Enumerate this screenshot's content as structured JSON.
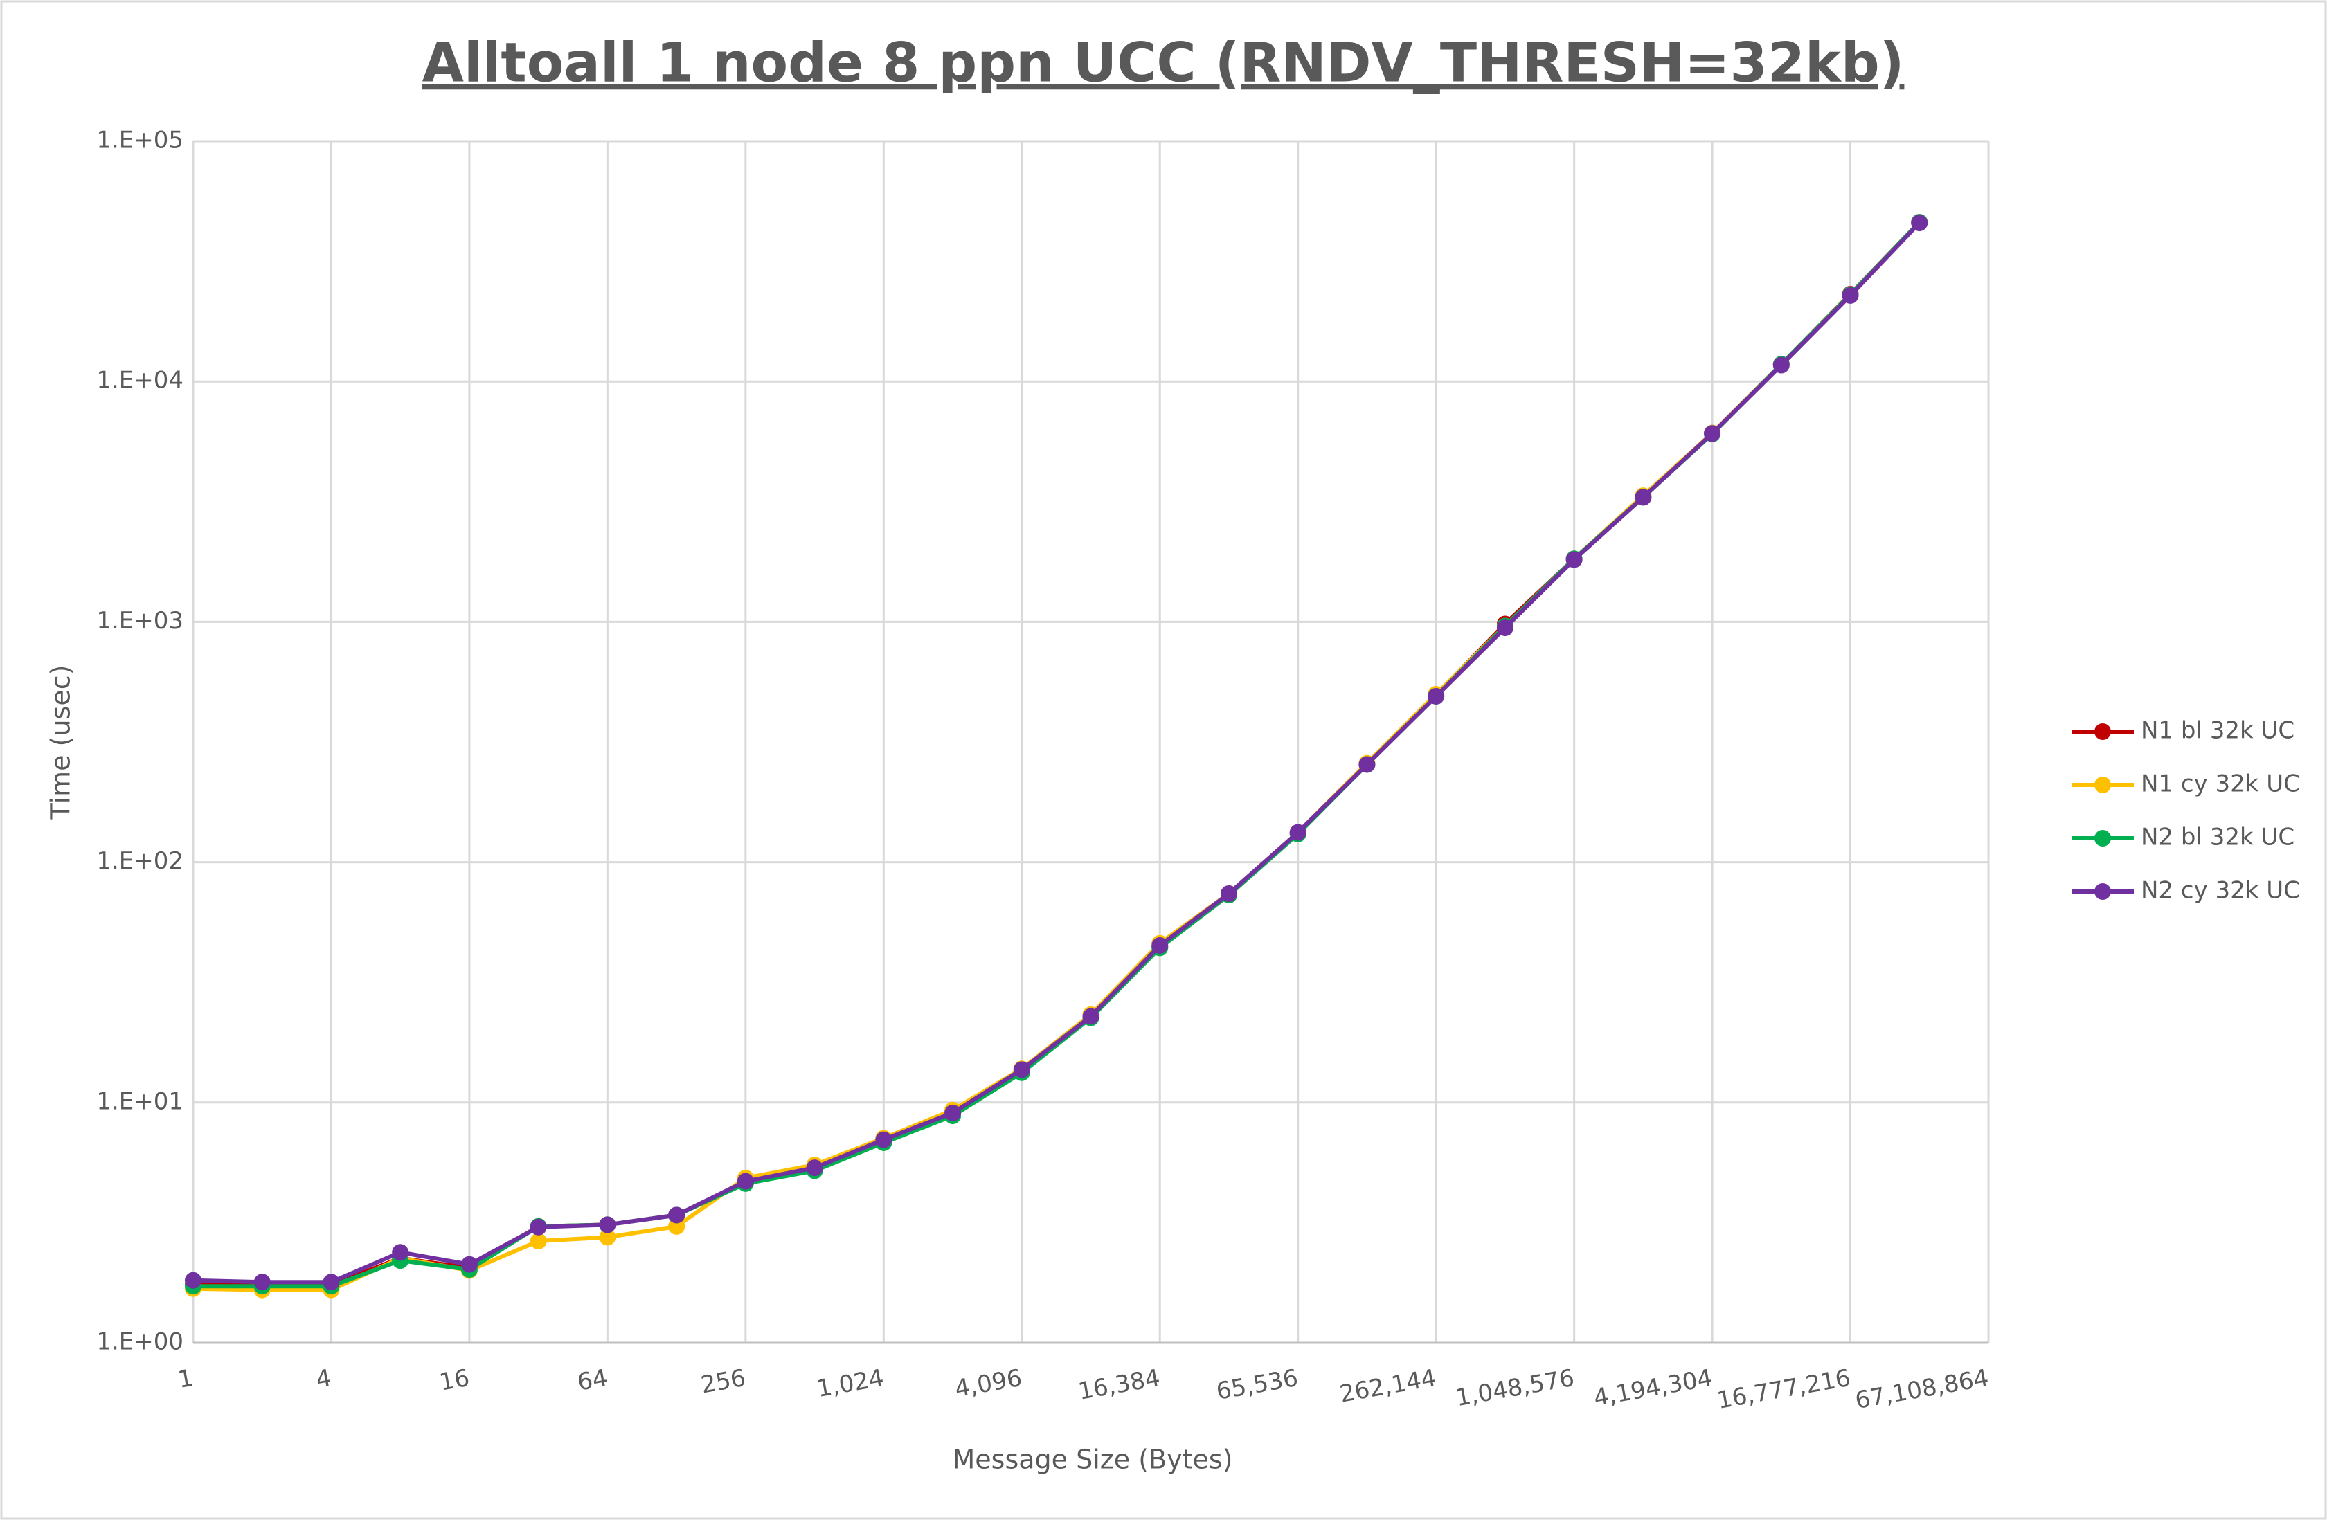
{
  "chart_data": {
    "type": "line",
    "title": "Alltoall 1 node 8 ppn UCC (RNDV_THRESH=32kb)",
    "x_label": "Message Size (Bytes)",
    "y_label": "Time (usec)",
    "x": [
      1,
      2,
      4,
      8,
      16,
      32,
      64,
      128,
      256,
      512,
      1024,
      2048,
      4096,
      8192,
      16384,
      32768,
      65536,
      131072,
      262144,
      524288,
      1048576,
      2097152,
      4194304,
      8388608,
      16777216,
      33554432
    ],
    "series": [
      {
        "name": "N1 bl 32k UC",
        "color": "#c00000",
        "values": [
          1.75,
          1.74,
          1.74,
          2.25,
          2.05,
          3.05,
          3.1,
          3.4,
          4.65,
          5.25,
          6.85,
          8.9,
          13.4,
          22.6,
          44.5,
          73,
          132,
          256,
          495,
          980,
          1830,
          3300,
          6100,
          11800,
          23100,
          46000
        ]
      },
      {
        "name": "N1 cy 32k UC",
        "color": "#ffc000",
        "values": [
          1.68,
          1.66,
          1.66,
          2.25,
          2.0,
          2.65,
          2.75,
          3.05,
          4.85,
          5.5,
          7.1,
          9.3,
          13.8,
          23.2,
          46,
          74,
          133,
          258,
          500,
          960,
          1830,
          3350,
          6100,
          11800,
          23000,
          46000
        ]
      },
      {
        "name": "N2 bl 32k UC",
        "color": "#00b050",
        "values": [
          1.72,
          1.72,
          1.72,
          2.2,
          2.02,
          3.05,
          3.1,
          3.4,
          4.6,
          5.2,
          6.8,
          8.8,
          13.3,
          22.5,
          44,
          73,
          131,
          255,
          490,
          960,
          1830,
          3300,
          6050,
          11800,
          23000,
          46000
        ]
      },
      {
        "name": "N2 cy 32k UC",
        "color": "#7030a0",
        "values": [
          1.82,
          1.79,
          1.79,
          2.38,
          2.12,
          3.03,
          3.1,
          3.4,
          4.7,
          5.35,
          7.0,
          9.05,
          13.7,
          22.8,
          45,
          74,
          133,
          255,
          490,
          944,
          1815,
          3300,
          6080,
          11700,
          22800,
          45700
        ]
      }
    ],
    "x_log": true,
    "y_log": true,
    "xlim": [
      1,
      67108864
    ],
    "xticks": [
      1,
      4,
      16,
      64,
      256,
      {
        "value": 1024,
        "label": "1,024"
      },
      {
        "value": 4096,
        "label": "4,096"
      },
      {
        "value": 16384,
        "label": "16,384"
      },
      {
        "value": 65536,
        "label": "65,536"
      },
      {
        "value": 262144,
        "label": "262,144"
      },
      {
        "value": 1048576,
        "label": "1,048,576"
      },
      {
        "value": 4194304,
        "label": "4,194,304"
      },
      {
        "value": 16777216,
        "label": "16,777,216"
      },
      {
        "value": 67108864,
        "label": "67,108,864"
      }
    ],
    "ylim": [
      1,
      100000
    ],
    "yticks": [
      {
        "value": 1,
        "label": "1.E+00"
      },
      {
        "value": 10,
        "label": "1.E+01"
      },
      {
        "value": 100,
        "label": "1.E+02"
      },
      {
        "value": 1000,
        "label": "1.E+03"
      },
      {
        "value": 10000,
        "label": "1.E+04"
      },
      {
        "value": 100000,
        "label": "1.E+05"
      }
    ],
    "grid": true,
    "legend": "right"
  }
}
